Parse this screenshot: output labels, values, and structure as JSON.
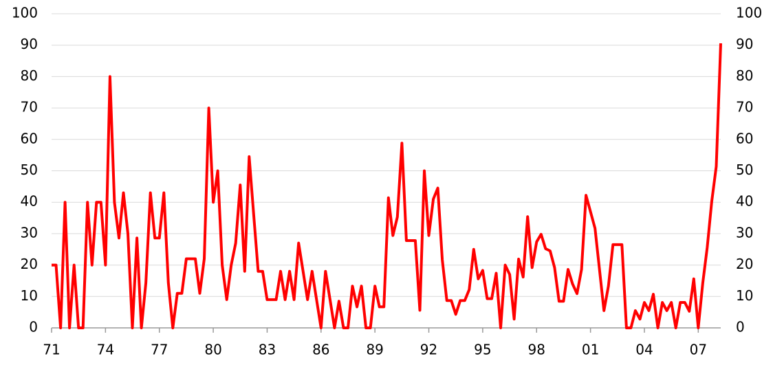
{
  "chart_data": {
    "type": "line",
    "x": [
      1971,
      1971.25,
      1971.5,
      1971.75,
      1972,
      1972.25,
      1972.5,
      1972.75,
      1973,
      1973.25,
      1973.5,
      1973.75,
      1974,
      1974.25,
      1974.5,
      1974.75,
      1975,
      1975.25,
      1975.5,
      1975.75,
      1976,
      1976.25,
      1976.5,
      1976.75,
      1977,
      1977.25,
      1977.5,
      1977.75,
      1978,
      1978.25,
      1978.5,
      1978.75,
      1979,
      1979.25,
      1979.5,
      1979.75,
      1980,
      1980.25,
      1980.5,
      1980.75,
      1981,
      1981.25,
      1981.5,
      1981.75,
      1982,
      1982.25,
      1982.5,
      1982.75,
      1983,
      1983.25,
      1983.5,
      1983.75,
      1984,
      1984.25,
      1984.5,
      1984.75,
      1985,
      1985.25,
      1985.5,
      1985.75,
      1986,
      1986.25,
      1986.5,
      1986.75,
      1987,
      1987.25,
      1987.5,
      1987.75,
      1988,
      1988.25,
      1988.5,
      1988.75,
      1989,
      1989.25,
      1989.5,
      1989.75,
      1990,
      1990.25,
      1990.5,
      1990.75,
      1991,
      1991.25,
      1991.5,
      1991.75,
      1992,
      1992.25,
      1992.5,
      1992.75,
      1993,
      1993.25,
      1993.5,
      1993.75,
      1994,
      1994.25,
      1994.5,
      1994.75,
      1995,
      1995.25,
      1995.5,
      1995.75,
      1996,
      1996.25,
      1996.5,
      1996.75,
      1997,
      1997.25,
      1997.5,
      1997.75,
      1998,
      1998.25,
      1998.5,
      1998.75,
      1999,
      1999.25,
      1999.5,
      1999.75,
      2000,
      2000.25,
      2000.5,
      2000.75,
      2001,
      2001.25,
      2001.5,
      2001.75,
      2002,
      2002.25,
      2002.5,
      2002.75,
      2003,
      2003.25,
      2003.5,
      2003.75,
      2004,
      2004.25,
      2004.5,
      2004.75,
      2005,
      2005.25,
      2005.5,
      2005.75,
      2006,
      2006.25,
      2006.5,
      2006.75,
      2007,
      2007.25,
      2007.5,
      2007.75,
      2008,
      2008.25
    ],
    "series": [
      {
        "color": "#ff0000",
        "values": [
          20,
          20,
          0,
          40,
          0,
          20,
          0,
          0,
          40,
          20,
          40,
          40,
          20,
          80,
          40,
          28.6,
          43,
          30,
          0,
          28.6,
          0,
          14.3,
          43,
          28.6,
          28.6,
          43,
          14.3,
          0,
          11,
          11,
          22,
          22,
          22,
          11,
          22,
          70,
          40,
          50,
          20,
          9,
          20,
          27,
          45.5,
          18,
          54.5,
          36,
          18,
          18,
          9,
          9,
          9,
          18,
          9,
          18,
          9,
          27,
          18,
          9,
          18,
          9,
          0,
          18,
          9,
          0,
          8.5,
          0,
          0,
          13.3,
          6.7,
          13.3,
          0,
          0,
          13.3,
          6.7,
          6.7,
          41.4,
          29.4,
          35.3,
          58.8,
          27.8,
          27.8,
          27.8,
          5.6,
          50,
          29.4,
          41,
          44.5,
          21.7,
          8.7,
          8.7,
          4.3,
          8.7,
          8.7,
          12.2,
          25,
          15.6,
          18.3,
          9.3,
          9.3,
          17.4,
          0,
          20,
          17,
          2.8,
          21.9,
          16.2,
          35.4,
          19.2,
          27.4,
          29.8,
          25.2,
          24.5,
          19.2,
          8.5,
          8.5,
          18.6,
          14,
          10.9,
          18.6,
          42.2,
          37,
          31.7,
          18.6,
          5.5,
          13.3,
          26.5,
          26.5,
          26.5,
          0,
          0,
          5.5,
          2.8,
          8.1,
          5.5,
          10.7,
          0,
          8.1,
          5.5,
          8.1,
          0,
          8.1,
          8.1,
          5.3,
          15.6,
          0,
          14.3,
          25.7,
          40.2,
          51.4,
          90.6
        ]
      }
    ],
    "xlim": [
      1971,
      2008.25
    ],
    "xticks": [
      {
        "value": 1971,
        "label": "71"
      },
      {
        "value": 1974,
        "label": "74"
      },
      {
        "value": 1977,
        "label": "77"
      },
      {
        "value": 1980,
        "label": "80"
      },
      {
        "value": 1983,
        "label": "83"
      },
      {
        "value": 1986,
        "label": "86"
      },
      {
        "value": 1989,
        "label": "89"
      },
      {
        "value": 1992,
        "label": "92"
      },
      {
        "value": 1995,
        "label": "95"
      },
      {
        "value": 1998,
        "label": "98"
      },
      {
        "value": 2001,
        "label": "01"
      },
      {
        "value": 2004,
        "label": "04"
      },
      {
        "value": 2007,
        "label": "07"
      }
    ],
    "ylim": [
      0,
      100
    ],
    "yticks": [
      0,
      10,
      20,
      30,
      40,
      50,
      60,
      70,
      80,
      90,
      100
    ],
    "y2lim": [
      0,
      100
    ],
    "y2ticks": [
      0,
      10,
      20,
      30,
      40,
      50,
      60,
      70,
      80,
      90,
      100
    ],
    "grid": true
  }
}
